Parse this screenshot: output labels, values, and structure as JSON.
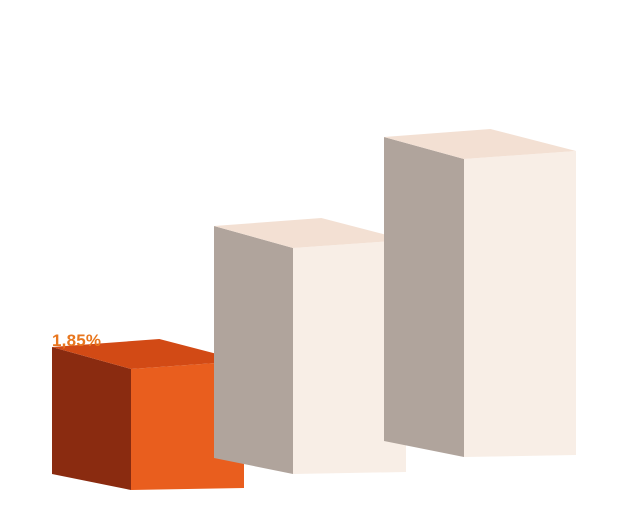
{
  "chart_data": {
    "type": "bar",
    "style": "3d-blocks",
    "categories": [
      "",
      "",
      ""
    ],
    "values": [
      1.85,
      3.6,
      4.8
    ],
    "data_labels": [
      "1,85%",
      "",
      ""
    ],
    "highlight_index": 0,
    "title": "",
    "xlabel": "",
    "ylabel": "",
    "grid": false,
    "legend": "none"
  },
  "colors": {
    "highlight_front": "#E95E1E",
    "highlight_side": "#8A2B10",
    "highlight_top": "#D24A15",
    "muted_front": "#F8EEE6",
    "muted_side": "#B0A49C",
    "muted_top": "#F3E0D3",
    "label": "#E8761E",
    "background": "#FFFFFF"
  }
}
